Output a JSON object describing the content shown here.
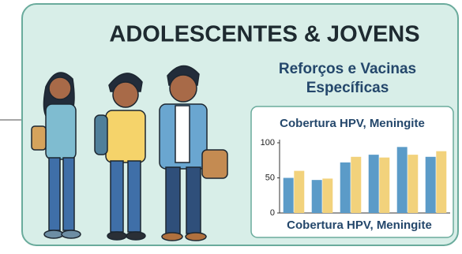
{
  "title": "ADOLESCENTES & JOVENS",
  "subtitle": [
    "Reforços e Vacinas",
    "Específicas"
  ],
  "chart_data": {
    "type": "bar",
    "title": "Cobertura HPV, Meningite",
    "xlabel": "Cobertura HPV, Meningite",
    "categories": [
      null,
      null,
      null,
      null,
      null,
      null
    ],
    "series": [
      {
        "color": "#5b9bc8",
        "values": [
          50,
          47,
          72,
          83,
          94,
          80
        ]
      },
      {
        "color": "#f2d27c",
        "values": [
          60,
          49,
          80,
          79,
          83,
          88
        ]
      }
    ],
    "ylim": [
      0,
      100
    ],
    "yticks": [
      0,
      50,
      100
    ],
    "grid": false
  }
}
